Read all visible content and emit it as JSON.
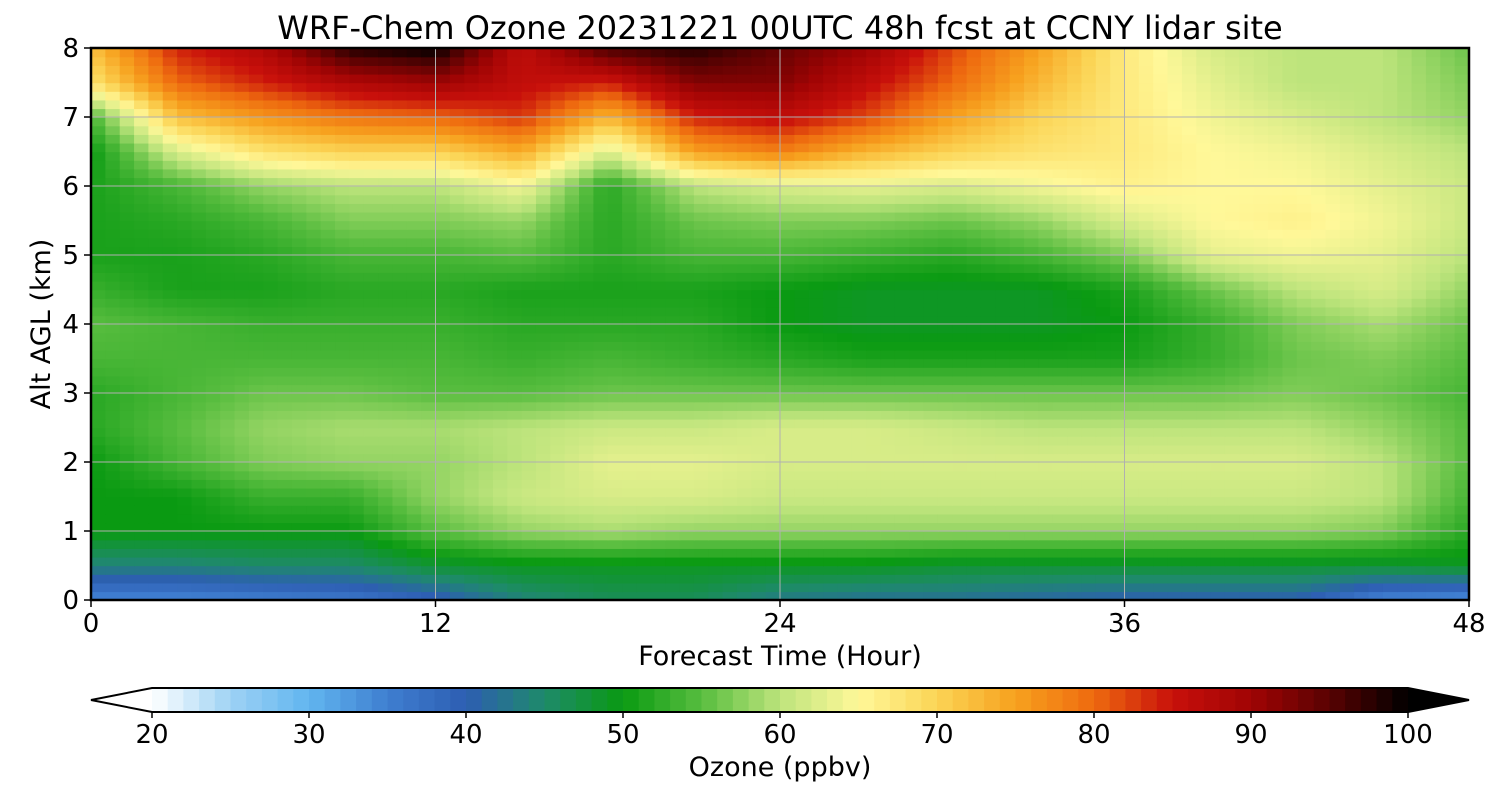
{
  "chart_data": {
    "type": "heatmap",
    "title": "WRF-Chem Ozone  20231221 00UTC 48h fcst at CCNY lidar site",
    "xlabel": "Forecast Time (Hour)",
    "ylabel": "Alt AGL (km)",
    "xlim": [
      0,
      48
    ],
    "ylim": [
      0,
      8
    ],
    "xticks": [
      0,
      12,
      24,
      36,
      48
    ],
    "yticks": [
      0,
      1,
      2,
      3,
      4,
      5,
      6,
      7,
      8
    ],
    "grid": true,
    "x": [
      0,
      3,
      6,
      9,
      12,
      15,
      18,
      21,
      24,
      27,
      30,
      33,
      36,
      39,
      42,
      45,
      48
    ],
    "y": [
      0,
      0.5,
      1,
      1.5,
      2,
      2.5,
      3,
      3.5,
      4,
      4.5,
      5,
      5.5,
      6,
      6.5,
      7,
      7.5,
      8
    ],
    "z": [
      [
        34,
        34,
        35,
        36,
        39,
        44,
        46,
        46,
        43,
        42,
        42,
        41,
        40,
        40,
        40,
        34,
        33
      ],
      [
        44,
        44,
        45,
        45,
        48,
        49,
        49,
        49,
        49,
        49,
        48,
        48,
        48,
        48,
        48,
        48,
        49
      ],
      [
        50,
        50,
        50,
        50,
        55,
        58,
        59,
        58,
        58,
        58,
        58,
        58,
        58,
        58,
        58,
        57,
        52
      ],
      [
        50,
        50,
        53,
        53,
        58,
        61,
        62,
        62,
        61,
        61,
        61,
        61,
        61,
        61,
        61,
        60,
        54
      ],
      [
        50,
        54,
        57,
        58,
        58,
        60,
        63,
        63,
        62,
        62,
        62,
        62,
        62,
        62,
        62,
        60,
        55
      ],
      [
        52,
        55,
        58,
        59,
        59,
        60,
        61,
        61,
        62,
        62,
        61,
        60,
        60,
        60,
        60,
        58,
        55
      ],
      [
        52,
        54,
        56,
        56,
        55,
        55,
        56,
        56,
        56,
        56,
        56,
        56,
        56,
        56,
        57,
        56,
        54
      ],
      [
        54,
        54,
        54,
        54,
        54,
        53,
        54,
        53,
        52,
        51,
        51,
        51,
        51,
        53,
        56,
        57,
        55
      ],
      [
        55,
        54,
        53,
        53,
        53,
        52,
        52,
        52,
        50,
        49,
        49,
        49,
        50,
        53,
        57,
        59,
        56
      ],
      [
        53,
        51,
        51,
        52,
        52,
        51,
        51,
        51,
        50,
        49,
        49,
        49,
        51,
        56,
        60,
        62,
        58
      ],
      [
        51,
        51,
        52,
        54,
        54,
        55,
        52,
        54,
        54,
        53,
        52,
        54,
        57,
        63,
        64,
        63,
        60
      ],
      [
        51,
        52,
        54,
        57,
        57,
        58,
        52,
        56,
        57,
        57,
        56,
        58,
        62,
        65,
        66,
        64,
        61
      ],
      [
        51,
        54,
        58,
        60,
        60,
        64,
        52,
        60,
        62,
        63,
        62,
        64,
        66,
        65,
        65,
        63,
        61
      ],
      [
        50,
        62,
        68,
        70,
        70,
        74,
        62,
        75,
        78,
        73,
        70,
        68,
        67,
        65,
        64,
        62,
        60
      ],
      [
        54,
        72,
        76,
        79,
        80,
        83,
        73,
        84,
        86,
        82,
        75,
        70,
        67,
        64,
        62,
        60,
        58
      ],
      [
        68,
        80,
        84,
        88,
        90,
        86,
        84,
        92,
        92,
        86,
        80,
        73,
        67,
        63,
        60,
        60,
        57
      ],
      [
        72,
        84,
        88,
        98,
        100,
        86,
        96,
        98,
        94,
        90,
        82,
        75,
        67,
        62,
        60,
        60,
        56
      ]
    ],
    "colorbar": {
      "label": "Ozone  (ppbv)",
      "min": 20,
      "max": 100,
      "ticks": [
        20,
        30,
        40,
        50,
        60,
        70,
        80,
        90,
        100
      ],
      "extend": "both",
      "colors": [
        "#ffffff",
        "#9ed2f4",
        "#61b5ef",
        "#3f7ed0",
        "#2d5eb2",
        "#1e8a6a",
        "#0a9a12",
        "#58bd3f",
        "#bde47c",
        "#fff899",
        "#fbd455",
        "#f7a11e",
        "#ee6a0f",
        "#c8100b",
        "#a00404",
        "#590202",
        "#000000"
      ]
    }
  }
}
